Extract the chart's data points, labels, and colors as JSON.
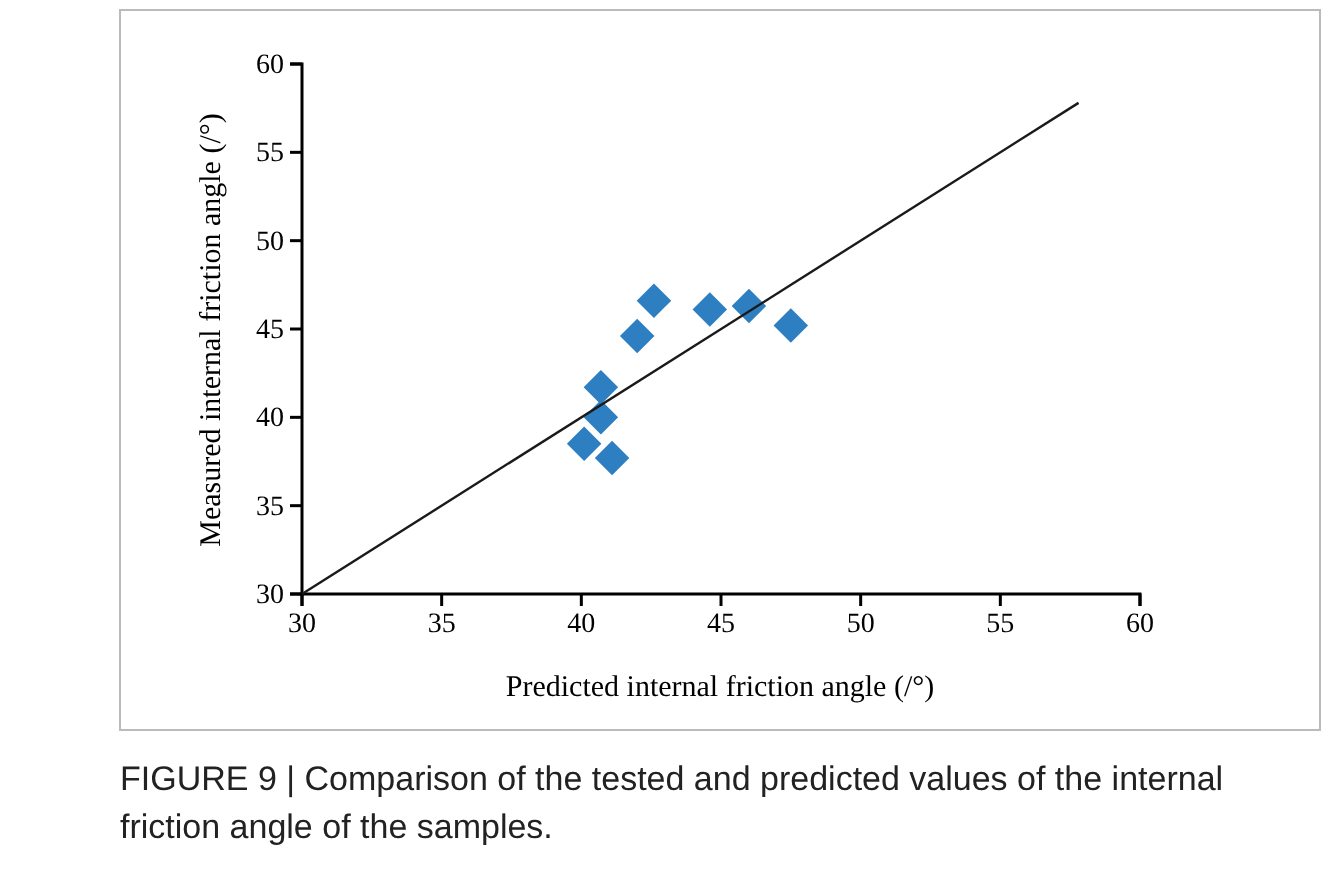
{
  "chart_data": {
    "type": "scatter",
    "xlabel": "Predicted internal friction angle (/°)",
    "ylabel": "Measured internal friction angle (/°)",
    "xlim": [
      30,
      60
    ],
    "ylim": [
      30,
      60
    ],
    "xticks": [
      30,
      35,
      40,
      45,
      50,
      55,
      60
    ],
    "yticks": [
      30,
      35,
      40,
      45,
      50,
      55,
      60
    ],
    "grid": false,
    "series": [
      {
        "marker": "diamond",
        "color": "#2e7fc2",
        "x": [
          42.6,
          42.0,
          44.6,
          46.0,
          47.5,
          40.7,
          40.7,
          40.1,
          41.1
        ],
        "values": [
          46.6,
          44.6,
          46.1,
          46.3,
          45.2,
          41.7,
          40.0,
          38.5,
          37.7
        ]
      },
      {
        "type": "line",
        "color": "#1a1a1a",
        "x": [
          30,
          57.8
        ],
        "values": [
          30,
          57.8
        ],
        "marker": "none",
        "line_style": "solid"
      }
    ],
    "annotations": [
      "FIGURE 9 | Comparison of the tested and predicted values of the internal friction angle of the samples."
    ]
  }
}
